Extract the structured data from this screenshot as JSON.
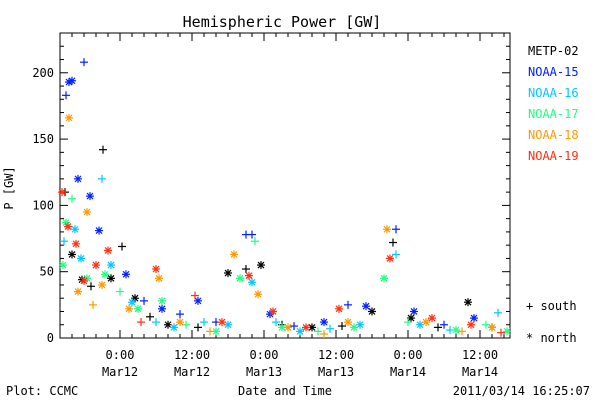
{
  "chart_data": {
    "type": "scatter",
    "title": "Hemispheric Power [GW]",
    "ylabel": "P [GW]",
    "xlabel": "Date and Time",
    "ylim": [
      0,
      230
    ],
    "xlim": [
      "2011-03-11T14:00",
      "2011-03-14T17:00"
    ],
    "y_ticks": [
      0,
      50,
      100,
      150,
      200
    ],
    "x_ticks": [
      {
        "x": "2011-03-12T00:00",
        "time": "0:00",
        "date": "Mar12"
      },
      {
        "x": "2011-03-12T12:00",
        "time": "12:00",
        "date": "Mar12"
      },
      {
        "x": "2011-03-13T00:00",
        "time": "0:00",
        "date": "Mar13"
      },
      {
        "x": "2011-03-13T12:00",
        "time": "12:00",
        "date": "Mar13"
      },
      {
        "x": "2011-03-14T00:00",
        "time": "0:00",
        "date": "Mar14"
      },
      {
        "x": "2011-03-14T12:00",
        "time": "12:00",
        "date": "Mar14"
      }
    ],
    "series": [
      {
        "name": "METP-02",
        "color": "#000000",
        "points": [
          {
            "x": "2011-03-11T14:50",
            "y": 110,
            "m": "+"
          },
          {
            "x": "2011-03-11T16:00",
            "y": 63,
            "m": "*"
          },
          {
            "x": "2011-03-11T17:40",
            "y": 44,
            "m": "*"
          },
          {
            "x": "2011-03-11T19:10",
            "y": 39,
            "m": "+"
          },
          {
            "x": "2011-03-11T21:10",
            "y": 142,
            "m": "+"
          },
          {
            "x": "2011-03-11T22:30",
            "y": 45,
            "m": "*"
          },
          {
            "x": "2011-03-12T00:20",
            "y": 69,
            "m": "+"
          },
          {
            "x": "2011-03-12T02:30",
            "y": 30,
            "m": "*"
          },
          {
            "x": "2011-03-12T05:00",
            "y": 16,
            "m": "+"
          },
          {
            "x": "2011-03-12T08:00",
            "y": 10,
            "m": "*"
          },
          {
            "x": "2011-03-12T13:00",
            "y": 8,
            "m": "+"
          },
          {
            "x": "2011-03-12T18:00",
            "y": 49,
            "m": "*"
          },
          {
            "x": "2011-03-12T21:00",
            "y": 52,
            "m": "+"
          },
          {
            "x": "2011-03-12T23:30",
            "y": 55,
            "m": "*"
          },
          {
            "x": "2011-03-13T03:00",
            "y": 10,
            "m": "+"
          },
          {
            "x": "2011-03-13T08:00",
            "y": 8,
            "m": "*"
          },
          {
            "x": "2011-03-13T13:00",
            "y": 9,
            "m": "+"
          },
          {
            "x": "2011-03-13T18:00",
            "y": 20,
            "m": "*"
          },
          {
            "x": "2011-03-13T21:30",
            "y": 72,
            "m": "+"
          },
          {
            "x": "2011-03-14T00:30",
            "y": 15,
            "m": "*"
          },
          {
            "x": "2011-03-14T05:00",
            "y": 8,
            "m": "+"
          },
          {
            "x": "2011-03-14T10:00",
            "y": 27,
            "m": "*"
          },
          {
            "x": "2011-03-14T14:00",
            "y": 8,
            "m": "+"
          }
        ]
      },
      {
        "name": "NOAA-15",
        "color": "#0020ff",
        "points": [
          {
            "x": "2011-03-11T15:00",
            "y": 183,
            "m": "+"
          },
          {
            "x": "2011-03-11T15:30",
            "y": 193,
            "m": "*"
          },
          {
            "x": "2011-03-11T16:00",
            "y": 194,
            "m": "*"
          },
          {
            "x": "2011-03-11T17:00",
            "y": 120,
            "m": "*"
          },
          {
            "x": "2011-03-11T18:00",
            "y": 208,
            "m": "+"
          },
          {
            "x": "2011-03-11T19:00",
            "y": 107,
            "m": "*"
          },
          {
            "x": "2011-03-11T20:30",
            "y": 81,
            "m": "*"
          },
          {
            "x": "2011-03-12T01:00",
            "y": 48,
            "m": "*"
          },
          {
            "x": "2011-03-12T04:00",
            "y": 28,
            "m": "+"
          },
          {
            "x": "2011-03-12T07:00",
            "y": 22,
            "m": "*"
          },
          {
            "x": "2011-03-12T10:00",
            "y": 18,
            "m": "+"
          },
          {
            "x": "2011-03-12T13:00",
            "y": 28,
            "m": "*"
          },
          {
            "x": "2011-03-12T16:00",
            "y": 12,
            "m": "+"
          },
          {
            "x": "2011-03-12T21:00",
            "y": 78,
            "m": "+"
          },
          {
            "x": "2011-03-12T22:00",
            "y": 78,
            "m": "+"
          },
          {
            "x": "2011-03-13T01:00",
            "y": 18,
            "m": "*"
          },
          {
            "x": "2011-03-13T05:00",
            "y": 9,
            "m": "+"
          },
          {
            "x": "2011-03-13T10:00",
            "y": 12,
            "m": "*"
          },
          {
            "x": "2011-03-13T14:00",
            "y": 25,
            "m": "+"
          },
          {
            "x": "2011-03-13T17:00",
            "y": 24,
            "m": "*"
          },
          {
            "x": "2011-03-13T22:00",
            "y": 82,
            "m": "+"
          },
          {
            "x": "2011-03-14T01:00",
            "y": 20,
            "m": "*"
          },
          {
            "x": "2011-03-14T06:00",
            "y": 10,
            "m": "+"
          },
          {
            "x": "2011-03-14T11:00",
            "y": 15,
            "m": "*"
          }
        ]
      },
      {
        "name": "NOAA-16",
        "color": "#00c8ff",
        "points": [
          {
            "x": "2011-03-11T14:40",
            "y": 73,
            "m": "+"
          },
          {
            "x": "2011-03-11T16:30",
            "y": 82,
            "m": "*"
          },
          {
            "x": "2011-03-11T17:30",
            "y": 60,
            "m": "*"
          },
          {
            "x": "2011-03-11T21:00",
            "y": 120,
            "m": "+"
          },
          {
            "x": "2011-03-11T22:30",
            "y": 55,
            "m": "*"
          },
          {
            "x": "2011-03-12T02:00",
            "y": 27,
            "m": "*"
          },
          {
            "x": "2011-03-12T06:00",
            "y": 12,
            "m": "+"
          },
          {
            "x": "2011-03-12T09:00",
            "y": 8,
            "m": "*"
          },
          {
            "x": "2011-03-12T14:00",
            "y": 12,
            "m": "+"
          },
          {
            "x": "2011-03-12T18:00",
            "y": 10,
            "m": "*"
          },
          {
            "x": "2011-03-12T22:00",
            "y": 42,
            "m": "*"
          },
          {
            "x": "2011-03-13T02:00",
            "y": 12,
            "m": "+"
          },
          {
            "x": "2011-03-13T06:00",
            "y": 5,
            "m": "*"
          },
          {
            "x": "2011-03-13T11:00",
            "y": 7,
            "m": "+"
          },
          {
            "x": "2011-03-13T16:00",
            "y": 10,
            "m": "*"
          },
          {
            "x": "2011-03-13T22:00",
            "y": 63,
            "m": "+"
          },
          {
            "x": "2011-03-14T02:00",
            "y": 10,
            "m": "*"
          },
          {
            "x": "2011-03-14T07:00",
            "y": 6,
            "m": "+"
          },
          {
            "x": "2011-03-14T15:00",
            "y": 19,
            "m": "+"
          }
        ]
      },
      {
        "name": "NOAA-17",
        "color": "#20ff80",
        "points": [
          {
            "x": "2011-03-11T14:30",
            "y": 55,
            "m": "*"
          },
          {
            "x": "2011-03-11T15:00",
            "y": 87,
            "m": "*"
          },
          {
            "x": "2011-03-11T16:00",
            "y": 105,
            "m": "+"
          },
          {
            "x": "2011-03-11T18:30",
            "y": 45,
            "m": "*"
          },
          {
            "x": "2011-03-11T21:30",
            "y": 48,
            "m": "*"
          },
          {
            "x": "2011-03-12T00:00",
            "y": 35,
            "m": "+"
          },
          {
            "x": "2011-03-12T03:00",
            "y": 22,
            "m": "*"
          },
          {
            "x": "2011-03-12T07:00",
            "y": 28,
            "m": "*"
          },
          {
            "x": "2011-03-12T11:00",
            "y": 10,
            "m": "+"
          },
          {
            "x": "2011-03-12T16:00",
            "y": 5,
            "m": "*"
          },
          {
            "x": "2011-03-12T20:00",
            "y": 45,
            "m": "*"
          },
          {
            "x": "2011-03-12T22:30",
            "y": 73,
            "m": "+"
          },
          {
            "x": "2011-03-13T03:00",
            "y": 8,
            "m": "*"
          },
          {
            "x": "2011-03-13T09:00",
            "y": 5,
            "m": "+"
          },
          {
            "x": "2011-03-13T15:00",
            "y": 8,
            "m": "*"
          },
          {
            "x": "2011-03-13T20:00",
            "y": 45,
            "m": "*"
          },
          {
            "x": "2011-03-14T00:00",
            "y": 12,
            "m": "+"
          },
          {
            "x": "2011-03-14T08:00",
            "y": 6,
            "m": "*"
          },
          {
            "x": "2011-03-14T13:00",
            "y": 10,
            "m": "+"
          },
          {
            "x": "2011-03-14T16:30",
            "y": 5,
            "m": "*"
          }
        ]
      },
      {
        "name": "NOAA-18",
        "color": "#ff9900",
        "points": [
          {
            "x": "2011-03-11T15:30",
            "y": 166,
            "m": "*"
          },
          {
            "x": "2011-03-11T17:00",
            "y": 35,
            "m": "*"
          },
          {
            "x": "2011-03-11T18:30",
            "y": 95,
            "m": "*"
          },
          {
            "x": "2011-03-11T19:30",
            "y": 25,
            "m": "+"
          },
          {
            "x": "2011-03-11T21:00",
            "y": 40,
            "m": "*"
          },
          {
            "x": "2011-03-12T01:30",
            "y": 22,
            "m": "*"
          },
          {
            "x": "2011-03-12T06:30",
            "y": 45,
            "m": "*"
          },
          {
            "x": "2011-03-12T10:00",
            "y": 12,
            "m": "*"
          },
          {
            "x": "2011-03-12T15:00",
            "y": 5,
            "m": "+"
          },
          {
            "x": "2011-03-12T19:00",
            "y": 63,
            "m": "*"
          },
          {
            "x": "2011-03-12T23:00",
            "y": 33,
            "m": "*"
          },
          {
            "x": "2011-03-13T04:00",
            "y": 8,
            "m": "*"
          },
          {
            "x": "2011-03-13T10:00",
            "y": 3,
            "m": "+"
          },
          {
            "x": "2011-03-13T14:00",
            "y": 12,
            "m": "*"
          },
          {
            "x": "2011-03-13T20:30",
            "y": 82,
            "m": "*"
          },
          {
            "x": "2011-03-14T03:00",
            "y": 12,
            "m": "*"
          },
          {
            "x": "2011-03-14T09:00",
            "y": 5,
            "m": "+"
          },
          {
            "x": "2011-03-14T14:00",
            "y": 8,
            "m": "*"
          }
        ]
      },
      {
        "name": "NOAA-19",
        "color": "#ff3010",
        "points": [
          {
            "x": "2011-03-11T14:20",
            "y": 110,
            "m": "*"
          },
          {
            "x": "2011-03-11T15:20",
            "y": 84,
            "m": "*"
          },
          {
            "x": "2011-03-11T16:40",
            "y": 71,
            "m": "*"
          },
          {
            "x": "2011-03-11T18:00",
            "y": 43,
            "m": "*"
          },
          {
            "x": "2011-03-11T20:00",
            "y": 55,
            "m": "*"
          },
          {
            "x": "2011-03-11T22:00",
            "y": 66,
            "m": "*"
          },
          {
            "x": "2011-03-12T03:30",
            "y": 12,
            "m": "+"
          },
          {
            "x": "2011-03-12T06:00",
            "y": 52,
            "m": "*"
          },
          {
            "x": "2011-03-12T12:30",
            "y": 32,
            "m": "+"
          },
          {
            "x": "2011-03-12T17:00",
            "y": 12,
            "m": "*"
          },
          {
            "x": "2011-03-12T21:30",
            "y": 47,
            "m": "*"
          },
          {
            "x": "2011-03-13T01:30",
            "y": 20,
            "m": "*"
          },
          {
            "x": "2011-03-13T07:00",
            "y": 8,
            "m": "*"
          },
          {
            "x": "2011-03-13T12:30",
            "y": 22,
            "m": "*"
          },
          {
            "x": "2011-03-13T21:00",
            "y": 60,
            "m": "*"
          },
          {
            "x": "2011-03-14T04:00",
            "y": 15,
            "m": "*"
          },
          {
            "x": "2011-03-14T10:30",
            "y": 10,
            "m": "*"
          },
          {
            "x": "2011-03-14T15:30",
            "y": 4,
            "m": "+"
          }
        ]
      }
    ],
    "marker_legend": {
      "south": "+ south",
      "north": "* north"
    }
  },
  "footer": {
    "left": "Plot: CCMC",
    "right": "2011/03/14 16:25:07"
  }
}
